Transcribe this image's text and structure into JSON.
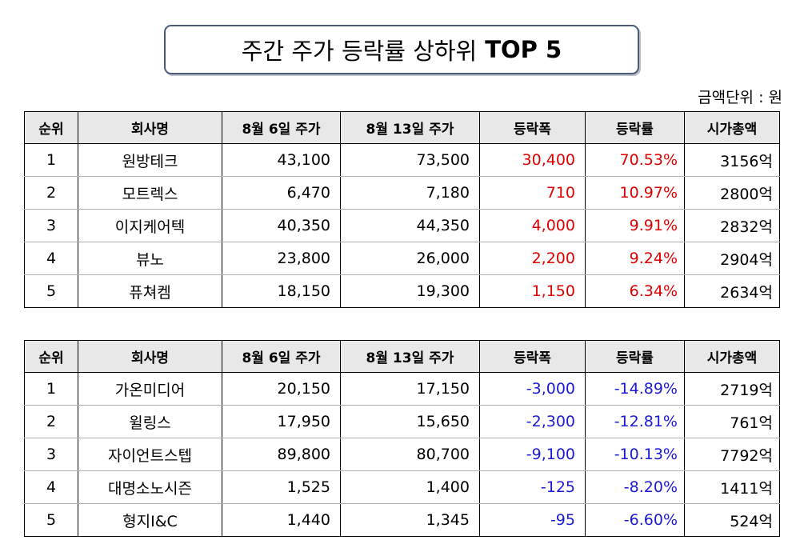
{
  "title": {
    "main": "주간 주가 등락률 상하위",
    "bold": "TOP 5"
  },
  "unit_note": "금액단위 : 원",
  "columns": [
    "순위",
    "회사명",
    "8월 6일 주가",
    "8월 13일 주가",
    "등락폭",
    "등락률",
    "시가총액"
  ],
  "colors": {
    "up": "#e00000",
    "down": "#1a1ad6"
  },
  "gainers": [
    {
      "rank": "1",
      "company": "원방테크",
      "price_aug6": "43,100",
      "price_aug13": "73,500",
      "change": "30,400",
      "change_rate": "70.53%",
      "market_cap": "3156억"
    },
    {
      "rank": "2",
      "company": "모트렉스",
      "price_aug6": "6,470",
      "price_aug13": "7,180",
      "change": "710",
      "change_rate": "10.97%",
      "market_cap": "2800억"
    },
    {
      "rank": "3",
      "company": "이지케어텍",
      "price_aug6": "40,350",
      "price_aug13": "44,350",
      "change": "4,000",
      "change_rate": "9.91%",
      "market_cap": "2832억"
    },
    {
      "rank": "4",
      "company": "뷰노",
      "price_aug6": "23,800",
      "price_aug13": "26,000",
      "change": "2,200",
      "change_rate": "9.24%",
      "market_cap": "2904억"
    },
    {
      "rank": "5",
      "company": "퓨쳐켐",
      "price_aug6": "18,150",
      "price_aug13": "19,300",
      "change": "1,150",
      "change_rate": "6.34%",
      "market_cap": "2634억"
    }
  ],
  "losers": [
    {
      "rank": "1",
      "company": "가온미디어",
      "price_aug6": "20,150",
      "price_aug13": "17,150",
      "change": "-3,000",
      "change_rate": "-14.89%",
      "market_cap": "2719억"
    },
    {
      "rank": "2",
      "company": "윌링스",
      "price_aug6": "17,950",
      "price_aug13": "15,650",
      "change": "-2,300",
      "change_rate": "-12.81%",
      "market_cap": "761억"
    },
    {
      "rank": "3",
      "company": "자이언트스텝",
      "price_aug6": "89,800",
      "price_aug13": "80,700",
      "change": "-9,100",
      "change_rate": "-10.13%",
      "market_cap": "7792억"
    },
    {
      "rank": "4",
      "company": "대명소노시즌",
      "price_aug6": "1,525",
      "price_aug13": "1,400",
      "change": "-125",
      "change_rate": "-8.20%",
      "market_cap": "1411억"
    },
    {
      "rank": "5",
      "company": "형지I&C",
      "price_aug6": "1,440",
      "price_aug13": "1,345",
      "change": "-95",
      "change_rate": "-6.60%",
      "market_cap": "524억"
    }
  ]
}
